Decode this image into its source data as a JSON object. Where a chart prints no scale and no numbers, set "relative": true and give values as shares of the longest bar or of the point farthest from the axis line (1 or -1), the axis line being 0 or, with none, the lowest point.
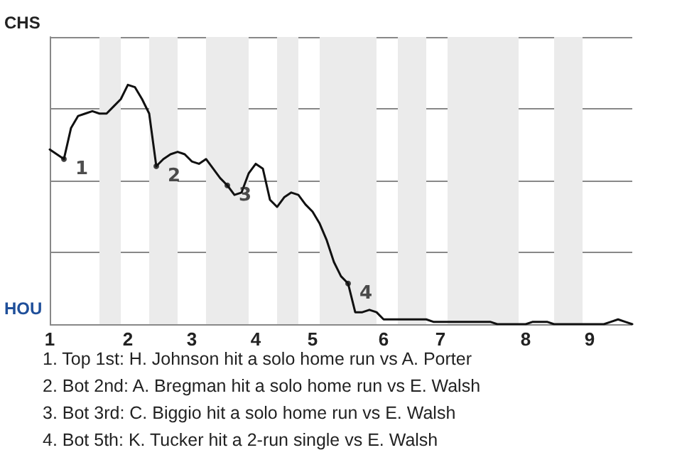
{
  "chart_data": {
    "type": "line",
    "relative": true,
    "grid": "y",
    "marker": "none",
    "line_style": "solid",
    "legend": false,
    "categories": [
      "1",
      null,
      null,
      null,
      null,
      null,
      null,
      null,
      null,
      null,
      null,
      "2",
      null,
      null,
      null,
      null,
      null,
      null,
      null,
      null,
      "3",
      null,
      null,
      null,
      null,
      null,
      null,
      null,
      null,
      "4",
      null,
      null,
      null,
      null,
      null,
      null,
      null,
      "5",
      null,
      null,
      null,
      null,
      null,
      null,
      null,
      null,
      null,
      "6",
      null,
      null,
      null,
      null,
      null,
      null,
      null,
      "7",
      null,
      null,
      null,
      null,
      null,
      null,
      null,
      null,
      null,
      null,
      null,
      "8",
      null,
      null,
      null,
      null,
      null,
      null,
      null,
      null,
      "9",
      null,
      null,
      null,
      null,
      null,
      null
    ],
    "series": [
      {
        "color": "#111111",
        "values": [
          0.73,
          0.71,
          0.69,
          0.82,
          0.87,
          0.88,
          0.89,
          0.88,
          0.88,
          0.91,
          0.94,
          1,
          0.99,
          0.94,
          0.88,
          0.66,
          0.69,
          0.71,
          0.72,
          0.71,
          0.68,
          0.67,
          0.69,
          0.65,
          0.61,
          0.58,
          0.54,
          0.55,
          0.63,
          0.67,
          0.65,
          0.52,
          0.49,
          0.53,
          0.55,
          0.54,
          0.5,
          0.47,
          0.42,
          0.35,
          0.26,
          0.2,
          0.17,
          0.05,
          0.05,
          0.06,
          0.05,
          0.02,
          0.02,
          0.02,
          0.02,
          0.02,
          0.02,
          0.02,
          0.01,
          0.01,
          0.01,
          0.01,
          0.01,
          0.01,
          0.01,
          0.01,
          0.01,
          0,
          0,
          0,
          0,
          0,
          0.01,
          0.01,
          0.01,
          0,
          0,
          0,
          0,
          0,
          0,
          0,
          0,
          0.01,
          0.02,
          0.01,
          0
        ]
      },
      {
        "type": "scatter",
        "marker": "circle",
        "name": "1",
        "values": [
          null,
          null,
          0.69,
          null,
          null,
          null,
          null,
          null,
          null,
          null,
          null,
          null,
          null,
          null,
          null,
          null,
          null,
          null,
          null,
          null,
          null,
          null,
          null,
          null,
          null,
          null,
          null,
          null,
          null,
          null,
          null,
          null,
          null,
          null,
          null,
          null,
          null,
          null,
          null,
          null,
          null,
          null,
          null,
          null,
          null,
          null,
          null,
          null,
          null,
          null,
          null,
          null,
          null,
          null,
          null,
          null,
          null,
          null,
          null,
          null,
          null,
          null,
          null,
          null,
          null,
          null,
          null,
          null,
          null,
          null,
          null,
          null,
          null,
          null,
          null,
          null,
          null,
          null,
          null,
          null,
          null,
          null,
          null
        ]
      },
      {
        "type": "scatter",
        "marker": "circle",
        "name": "2",
        "values": [
          null,
          null,
          null,
          null,
          null,
          null,
          null,
          null,
          null,
          null,
          null,
          null,
          null,
          null,
          null,
          0.66,
          null,
          null,
          null,
          null,
          null,
          null,
          null,
          null,
          null,
          null,
          null,
          null,
          null,
          null,
          null,
          null,
          null,
          null,
          null,
          null,
          null,
          null,
          null,
          null,
          null,
          null,
          null,
          null,
          null,
          null,
          null,
          null,
          null,
          null,
          null,
          null,
          null,
          null,
          null,
          null,
          null,
          null,
          null,
          null,
          null,
          null,
          null,
          null,
          null,
          null,
          null,
          null,
          null,
          null,
          null,
          null,
          null,
          null,
          null,
          null,
          null,
          null,
          null,
          null,
          null,
          null,
          null
        ]
      },
      {
        "type": "scatter",
        "marker": "circle",
        "name": "3",
        "values": [
          null,
          null,
          null,
          null,
          null,
          null,
          null,
          null,
          null,
          null,
          null,
          null,
          null,
          null,
          null,
          null,
          null,
          null,
          null,
          null,
          null,
          null,
          null,
          null,
          null,
          0.58,
          null,
          null,
          null,
          null,
          null,
          null,
          null,
          null,
          null,
          null,
          null,
          null,
          null,
          null,
          null,
          null,
          null,
          null,
          null,
          null,
          null,
          null,
          null,
          null,
          null,
          null,
          null,
          null,
          null,
          null,
          null,
          null,
          null,
          null,
          null,
          null,
          null,
          null,
          null,
          null,
          null,
          null,
          null,
          null,
          null,
          null,
          null,
          null,
          null,
          null,
          null,
          null,
          null,
          null,
          null,
          null,
          null
        ]
      },
      {
        "type": "scatter",
        "marker": "circle",
        "name": "4",
        "values": [
          null,
          null,
          null,
          null,
          null,
          null,
          null,
          null,
          null,
          null,
          null,
          null,
          null,
          null,
          null,
          null,
          null,
          null,
          null,
          null,
          null,
          null,
          null,
          null,
          null,
          null,
          null,
          null,
          null,
          null,
          null,
          null,
          null,
          null,
          null,
          null,
          null,
          null,
          null,
          null,
          null,
          null,
          0.17,
          null,
          null,
          null,
          null,
          null,
          null,
          null,
          null,
          null,
          null,
          null,
          null,
          null,
          null,
          null,
          null,
          null,
          null,
          null,
          null,
          null,
          null,
          null,
          null,
          null,
          null,
          null,
          null,
          null,
          null,
          null,
          null,
          null,
          null,
          null,
          null,
          null,
          null,
          null,
          null
        ]
      }
    ],
    "annotations": [
      "CHS",
      "HOU",
      "1. Top 1st: H. Johnson hit a solo home run vs A. Porter",
      "2. Bot 2nd: A. Bregman hit a solo home run vs E. Walsh",
      "3. Bot 3rd: C. Biggio hit a solo home run vs E. Walsh",
      "4. Bot 5th: K. Tucker hit a 2-run single vs E. Walsh"
    ]
  }
}
